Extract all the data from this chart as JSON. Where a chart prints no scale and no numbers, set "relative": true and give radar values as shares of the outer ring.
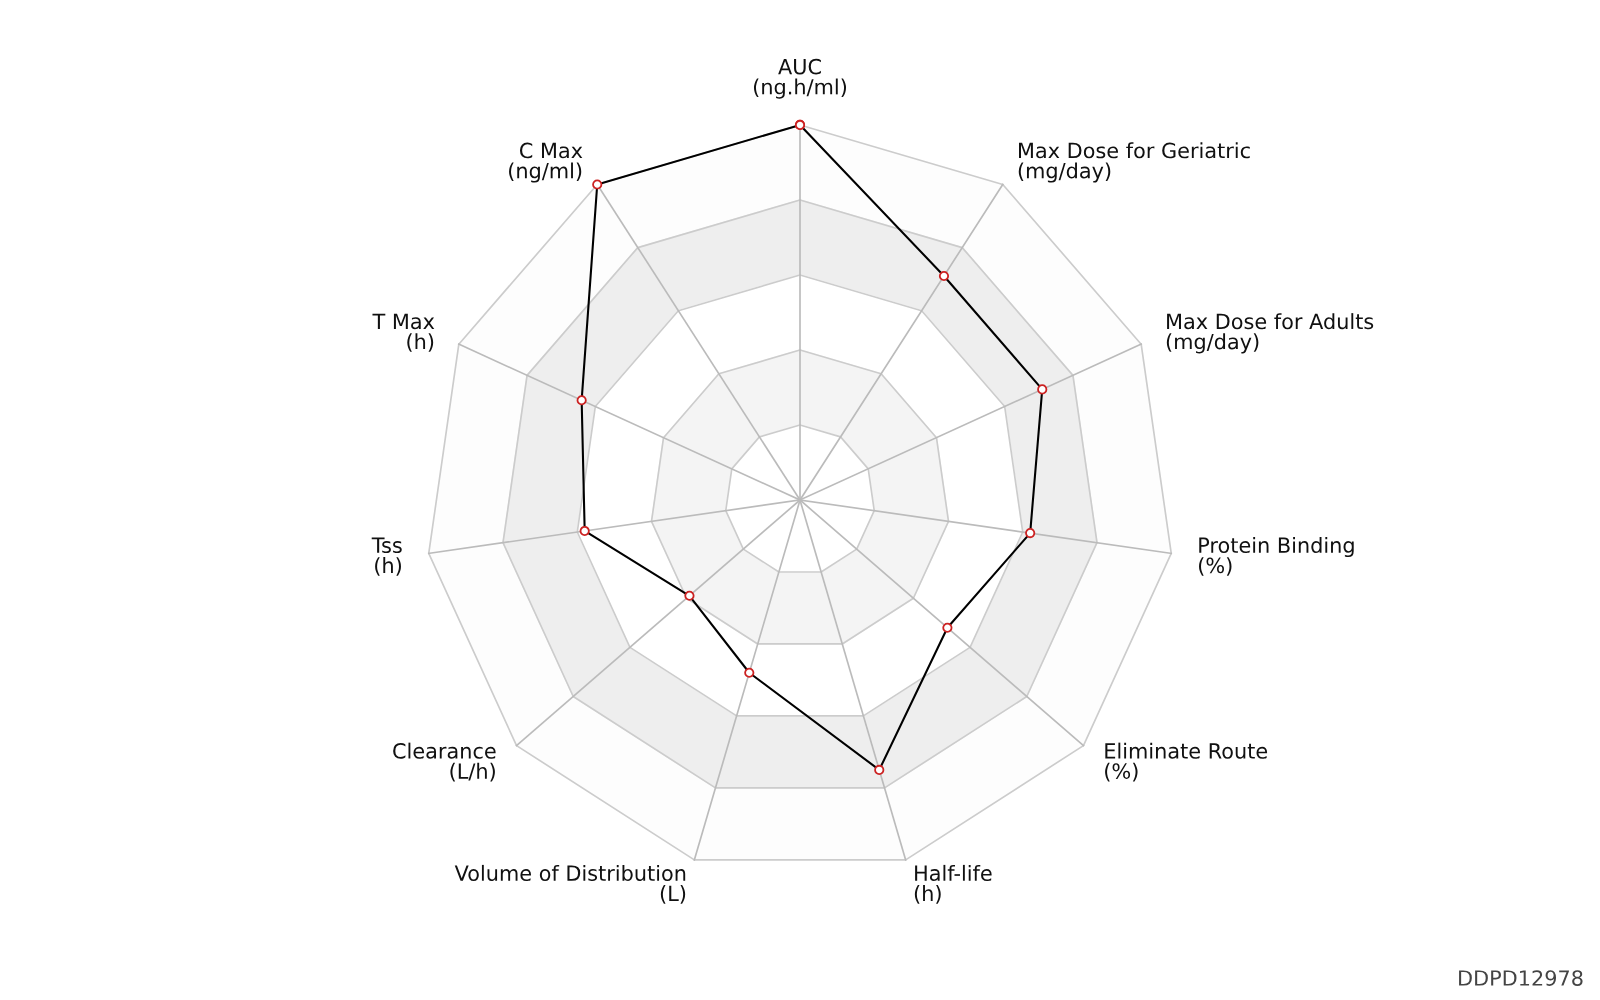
{
  "chart_data": {
    "type": "radar",
    "relative": true,
    "grid": true,
    "marker": "circle",
    "legend": false,
    "categories": [
      "AUC\n(ng.h/ml)",
      "Max Dose for Geriatric\n(mg/day)",
      "Max Dose for Adults\n(mg/day)",
      "Protein Binding\n(%)",
      "Eliminate Route\n(%)",
      "Half-life\n(h)",
      "Volume of Distribution\n(L)",
      "Clearance\n(L/h)",
      "Tss\n(h)",
      "T Max\n(h)",
      "C Max\n(ng/ml)"
    ],
    "series": [
      {
        "color": "#000000",
        "values": [
          1.0,
          0.71,
          0.71,
          0.62,
          0.52,
          0.75,
          0.48,
          0.39,
          0.58,
          0.64,
          1.0
        ]
      }
    ],
    "annotations": [
      "DDPD12978"
    ]
  }
}
